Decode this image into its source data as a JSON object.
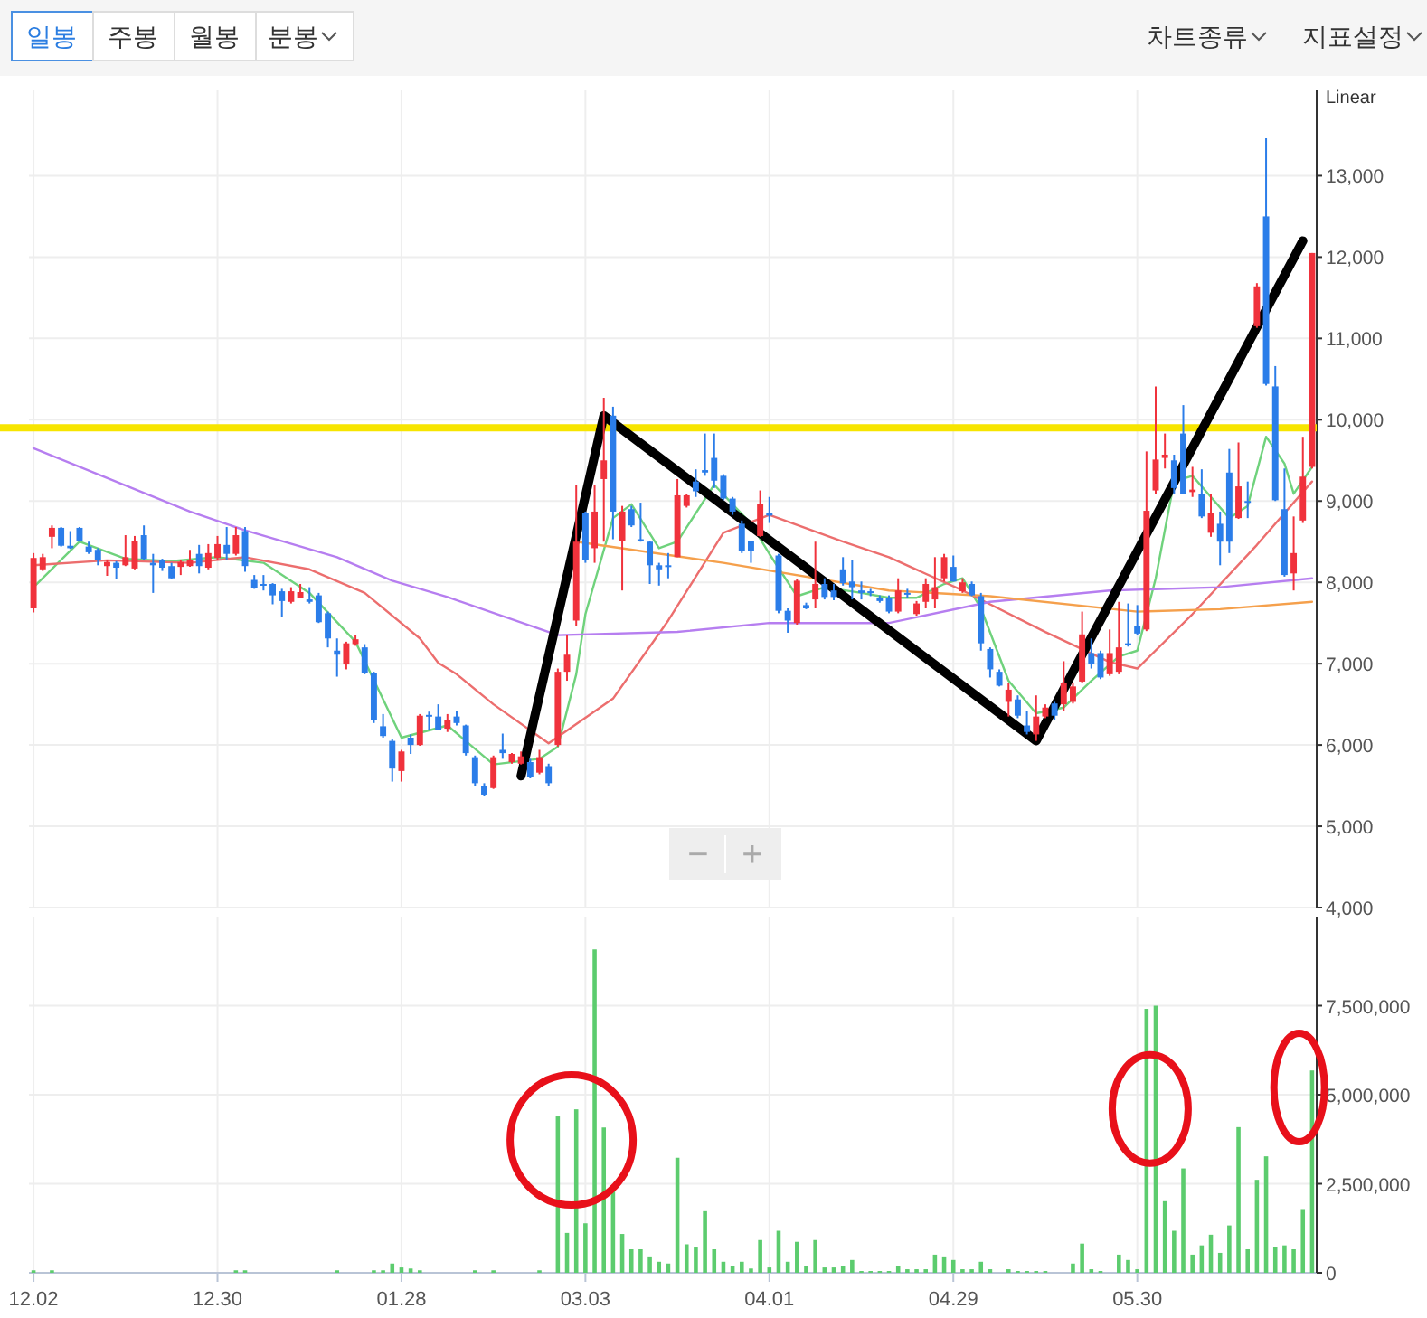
{
  "chart_data": [
    {
      "type": "candlestick",
      "categories": [
        "12.02",
        null,
        null,
        null,
        null,
        null,
        null,
        null,
        null,
        null,
        null,
        null,
        null,
        null,
        null,
        null,
        null,
        null,
        null,
        null,
        "12.30",
        null,
        null,
        null,
        null,
        null,
        null,
        null,
        null,
        null,
        null,
        null,
        null,
        null,
        null,
        null,
        null,
        null,
        null,
        null,
        "01.28",
        null,
        null,
        null,
        null,
        null,
        null,
        null,
        null,
        null,
        null,
        null,
        null,
        null,
        null,
        null,
        null,
        null,
        null,
        null,
        "03.03",
        null,
        null,
        null,
        null,
        null,
        null,
        null,
        null,
        null,
        null,
        null,
        null,
        null,
        null,
        null,
        null,
        null,
        null,
        null,
        "04.01",
        null,
        null,
        null,
        null,
        null,
        null,
        null,
        null,
        null,
        null,
        null,
        null,
        null,
        null,
        null,
        null,
        null,
        null,
        null,
        "04.29",
        null,
        null,
        null,
        null,
        null,
        null,
        null,
        null,
        null,
        null,
        null,
        null,
        null,
        null,
        null,
        null,
        null,
        null,
        null,
        "05.30",
        null,
        null,
        null,
        null,
        null,
        null,
        null,
        null,
        null,
        null,
        null,
        null,
        null,
        null,
        null,
        null,
        null,
        null,
        null
      ],
      "ohlc": [
        [
          7680,
          8360,
          7630,
          8300
        ],
        [
          8160,
          8350,
          8140,
          8310
        ],
        [
          8560,
          8700,
          8420,
          8670
        ],
        [
          8670,
          8680,
          8440,
          8450
        ],
        [
          8450,
          8630,
          8410,
          8420
        ],
        [
          8670,
          8680,
          8500,
          8510
        ],
        [
          8440,
          8500,
          8350,
          8370
        ],
        [
          8400,
          8420,
          8210,
          8270
        ],
        [
          8200,
          8270,
          8080,
          8250
        ],
        [
          8240,
          8260,
          8040,
          8180
        ],
        [
          8210,
          8580,
          8200,
          8310
        ],
        [
          8170,
          8570,
          8160,
          8510
        ],
        [
          8580,
          8700,
          8270,
          8290
        ],
        [
          8240,
          8350,
          7870,
          8210
        ],
        [
          8270,
          8290,
          8140,
          8180
        ],
        [
          8200,
          8240,
          8040,
          8050
        ],
        [
          8190,
          8270,
          8090,
          8250
        ],
        [
          8200,
          8400,
          8190,
          8270
        ],
        [
          8350,
          8460,
          8110,
          8200
        ],
        [
          8180,
          8470,
          8160,
          8360
        ],
        [
          8300,
          8570,
          8270,
          8470
        ],
        [
          8460,
          8680,
          8270,
          8350
        ],
        [
          8350,
          8680,
          8330,
          8580
        ],
        [
          8630,
          8680,
          8130,
          8200
        ],
        [
          8030,
          8090,
          7920,
          7930
        ],
        [
          7980,
          8090,
          7900,
          7960
        ],
        [
          7980,
          7990,
          7730,
          7840
        ],
        [
          7890,
          7920,
          7570,
          7770
        ],
        [
          7760,
          7940,
          7740,
          7890
        ],
        [
          7810,
          7980,
          7810,
          7880
        ],
        [
          7790,
          7940,
          7740,
          7760
        ],
        [
          7840,
          7870,
          7500,
          7510
        ],
        [
          7620,
          7640,
          7200,
          7310
        ],
        [
          7160,
          7310,
          6840,
          7110
        ],
        [
          6990,
          7270,
          6930,
          7250
        ],
        [
          7240,
          7350,
          7220,
          7300
        ],
        [
          7200,
          7240,
          6870,
          6890
        ],
        [
          6890,
          6900,
          6270,
          6310
        ],
        [
          6230,
          6380,
          6090,
          6110
        ],
        [
          6050,
          6070,
          5550,
          5710
        ],
        [
          5680,
          5940,
          5550,
          5920
        ],
        [
          6090,
          6130,
          5890,
          6000
        ],
        [
          6000,
          6380,
          5990,
          6360
        ],
        [
          6370,
          6410,
          6190,
          6360
        ],
        [
          6350,
          6500,
          6180,
          6180
        ],
        [
          6200,
          6380,
          6160,
          6310
        ],
        [
          6350,
          6420,
          6240,
          6270
        ],
        [
          6240,
          6250,
          5870,
          5900
        ],
        [
          5850,
          5870,
          5500,
          5530
        ],
        [
          5500,
          5530,
          5370,
          5390
        ],
        [
          5470,
          5870,
          5460,
          5850
        ],
        [
          5940,
          6140,
          5830,
          5900
        ],
        [
          5790,
          5900,
          5770,
          5890
        ],
        [
          5770,
          5920,
          5760,
          5860
        ],
        [
          5790,
          5830,
          5590,
          5610
        ],
        [
          5660,
          5940,
          5640,
          5850
        ],
        [
          5740,
          5770,
          5500,
          5530
        ],
        [
          6000,
          6940,
          5980,
          6900
        ],
        [
          6900,
          7350,
          6790,
          7110
        ],
        [
          7530,
          9200,
          7460,
          8500
        ],
        [
          8850,
          8870,
          8240,
          8280
        ],
        [
          8420,
          9200,
          8240,
          8870
        ],
        [
          9270,
          10270,
          8500,
          9500
        ],
        [
          10050,
          10160,
          8530,
          8870
        ],
        [
          8510,
          8940,
          7900,
          8870
        ],
        [
          8900,
          8940,
          8680,
          8700
        ],
        [
          8530,
          8980,
          8500,
          8510
        ],
        [
          8500,
          8510,
          7980,
          8210
        ],
        [
          8210,
          8240,
          7960,
          8160
        ],
        [
          8210,
          8360,
          8050,
          8190
        ],
        [
          8310,
          9270,
          8310,
          9070
        ],
        [
          8940,
          9090,
          8920,
          9070
        ],
        [
          9240,
          9390,
          9050,
          9120
        ],
        [
          9380,
          9830,
          9310,
          9350
        ],
        [
          9530,
          9830,
          9160,
          9250
        ],
        [
          9310,
          9330,
          9010,
          9030
        ],
        [
          9030,
          9050,
          8830,
          8870
        ],
        [
          8720,
          8760,
          8360,
          8390
        ],
        [
          8510,
          8510,
          8240,
          8390
        ],
        [
          8570,
          9130,
          8560,
          8960
        ],
        [
          8850,
          9050,
          8730,
          8820
        ],
        [
          8330,
          8350,
          7620,
          7650
        ],
        [
          7650,
          7680,
          7380,
          7530
        ],
        [
          7500,
          8040,
          7480,
          8020
        ],
        [
          7720,
          7750,
          7670,
          7680
        ],
        [
          7790,
          8500,
          7680,
          7980
        ],
        [
          7980,
          8050,
          7790,
          7820
        ],
        [
          7900,
          7980,
          7780,
          7820
        ],
        [
          8160,
          8310,
          7960,
          7990
        ],
        [
          8010,
          8270,
          7790,
          7940
        ],
        [
          7900,
          8010,
          7790,
          7870
        ],
        [
          7890,
          7920,
          7830,
          7870
        ],
        [
          7810,
          7840,
          7750,
          7770
        ],
        [
          7810,
          7840,
          7620,
          7640
        ],
        [
          7640,
          8050,
          7620,
          7900
        ],
        [
          7870,
          7920,
          7810,
          7860
        ],
        [
          7610,
          7770,
          7590,
          7740
        ],
        [
          7760,
          8050,
          7680,
          7980
        ],
        [
          7790,
          8310,
          7680,
          7940
        ],
        [
          8050,
          8350,
          8010,
          8310
        ],
        [
          8190,
          8330,
          8010,
          8010
        ],
        [
          7890,
          8050,
          7870,
          8000
        ],
        [
          7980,
          8010,
          7830,
          7840
        ],
        [
          7830,
          7870,
          7160,
          7250
        ],
        [
          7180,
          7200,
          6830,
          6930
        ],
        [
          6900,
          6930,
          6720,
          6730
        ],
        [
          6530,
          6760,
          6350,
          6680
        ],
        [
          6560,
          6610,
          6330,
          6360
        ],
        [
          6240,
          6420,
          6130,
          6160
        ],
        [
          6130,
          6610,
          6050,
          6350
        ],
        [
          6350,
          6500,
          6330,
          6460
        ],
        [
          6510,
          6530,
          6310,
          6360
        ],
        [
          6500,
          7030,
          6420,
          6760
        ],
        [
          6530,
          6760,
          6510,
          6720
        ],
        [
          6780,
          7640,
          6760,
          7360
        ],
        [
          7130,
          7310,
          6940,
          7000
        ],
        [
          7130,
          7160,
          6810,
          6830
        ],
        [
          6870,
          7420,
          6850,
          7130
        ],
        [
          6900,
          7760,
          6870,
          7200
        ],
        [
          7250,
          7740,
          7210,
          7240
        ],
        [
          7460,
          7720,
          7350,
          7370
        ],
        [
          7420,
          9610,
          7400,
          8880
        ],
        [
          9130,
          10410,
          9090,
          9510
        ],
        [
          9530,
          9830,
          9400,
          9570
        ],
        [
          9500,
          9570,
          9090,
          9160
        ],
        [
          9830,
          10180,
          9090,
          9090
        ],
        [
          9110,
          9420,
          9050,
          9140
        ],
        [
          9090,
          9390,
          8790,
          8810
        ],
        [
          8610,
          9090,
          8560,
          8850
        ],
        [
          8720,
          8870,
          8210,
          8500
        ],
        [
          9350,
          9640,
          8360,
          8500
        ],
        [
          8790,
          9720,
          8780,
          9180
        ],
        [
          9000,
          9240,
          8790,
          8980
        ],
        [
          11150,
          11680,
          11130,
          11640
        ],
        [
          12500,
          13460,
          10420,
          10440
        ],
        [
          10410,
          10660,
          9000,
          9010
        ],
        [
          8900,
          9400,
          8070,
          8090
        ],
        [
          8110,
          8810,
          7900,
          8360
        ],
        [
          8760,
          9790,
          8730,
          9300
        ],
        [
          9420,
          12050,
          9400,
          12050
        ]
      ],
      "series": [
        {
          "type": "line",
          "color": "#6fd27c",
          "values": [
            7940,
            null,
            null,
            null,
            null,
            8500,
            null,
            null,
            null,
            null,
            8290,
            null,
            null,
            null,
            null,
            8260,
            null,
            null,
            null,
            null,
            8310,
            null,
            null,
            null,
            null,
            8240,
            null,
            null,
            null,
            null,
            7870,
            null,
            null,
            null,
            null,
            7270,
            null,
            null,
            null,
            null,
            6090,
            null,
            null,
            null,
            null,
            6240,
            null,
            null,
            null,
            null,
            5760,
            null,
            null,
            null,
            null,
            5830,
            null,
            5980,
            null,
            6870,
            7610,
            null,
            null,
            8790,
            null,
            8960,
            null,
            null,
            8420,
            null,
            8500,
            null,
            null,
            null,
            9200,
            null,
            null,
            null,
            8720,
            null,
            8350,
            null,
            null,
            7830,
            null,
            null,
            7940,
            null,
            null,
            null,
            7870,
            null,
            null,
            7810,
            null,
            null,
            7810,
            null,
            null,
            7980,
            null,
            8050,
            null,
            7680,
            null,
            null,
            6790,
            null,
            null,
            6390,
            null,
            null,
            6460,
            null,
            null,
            6790,
            null,
            null,
            7090,
            null,
            7160,
            null,
            8050,
            null,
            9240,
            null,
            9310,
            null,
            9050,
            null,
            8790,
            null,
            8940,
            null,
            9790,
            null,
            9460,
            9090,
            null,
            9420
          ]
        },
        {
          "type": "line",
          "color": "#ec6e6e",
          "values": [
            8210,
            null,
            null,
            null,
            null,
            null,
            null,
            null,
            8270,
            null,
            null,
            null,
            null,
            null,
            null,
            null,
            null,
            8240,
            null,
            null,
            null,
            null,
            null,
            8310,
            null,
            null,
            null,
            null,
            null,
            null,
            8160,
            null,
            null,
            null,
            null,
            null,
            7870,
            null,
            null,
            null,
            null,
            null,
            7310,
            null,
            7010,
            null,
            6870,
            null,
            null,
            null,
            6500,
            null,
            null,
            null,
            null,
            null,
            6020,
            null,
            null,
            null,
            null,
            null,
            null,
            6570,
            null,
            null,
            null,
            null,
            null,
            7530,
            null,
            null,
            null,
            null,
            null,
            8610,
            null,
            null,
            null,
            null,
            8830,
            null,
            null,
            null,
            null,
            null,
            null,
            null,
            8500,
            null,
            null,
            null,
            null,
            8310,
            null,
            null,
            null,
            null,
            null,
            null,
            null,
            7900,
            null,
            null,
            null,
            null,
            null,
            null,
            null,
            null,
            7390,
            null,
            null,
            null,
            null,
            null,
            null,
            7020,
            null,
            null,
            6940,
            null,
            null,
            null,
            null,
            null,
            7610,
            null,
            null,
            null,
            null,
            null,
            null,
            8460,
            null,
            null,
            null,
            null,
            null,
            9240
          ]
        },
        {
          "type": "line",
          "color": "#b67ef0",
          "values": [
            9650,
            null,
            null,
            null,
            null,
            null,
            null,
            null,
            null,
            null,
            null,
            null,
            null,
            null,
            null,
            null,
            null,
            8870,
            null,
            null,
            null,
            null,
            null,
            8640,
            null,
            null,
            null,
            null,
            null,
            null,
            null,
            null,
            null,
            8310,
            null,
            null,
            null,
            null,
            null,
            8020,
            null,
            null,
            null,
            null,
            null,
            7820,
            null,
            null,
            null,
            null,
            null,
            null,
            null,
            null,
            null,
            null,
            null,
            7350,
            null,
            null,
            null,
            null,
            null,
            null,
            null,
            null,
            null,
            null,
            null,
            null,
            7390,
            null,
            null,
            null,
            null,
            null,
            null,
            null,
            null,
            null,
            7500,
            null,
            null,
            null,
            null,
            null,
            null,
            null,
            null,
            null,
            null,
            null,
            null,
            7500,
            null,
            null,
            null,
            null,
            null,
            null,
            null,
            null,
            null,
            null,
            7760,
            null,
            null,
            null,
            null,
            null,
            null,
            null,
            null,
            null,
            null,
            null,
            null,
            7900,
            null,
            null,
            null,
            null,
            null,
            null,
            null,
            null,
            null,
            null,
            null,
            7940,
            null,
            null,
            null,
            null,
            null,
            null,
            null,
            null,
            null,
            8050
          ]
        },
        {
          "type": "line",
          "color": "#f5a04c",
          "values": [
            null,
            null,
            null,
            null,
            null,
            null,
            null,
            null,
            null,
            null,
            null,
            null,
            null,
            null,
            null,
            null,
            null,
            null,
            null,
            null,
            null,
            null,
            null,
            null,
            null,
            null,
            null,
            null,
            null,
            null,
            null,
            null,
            null,
            null,
            null,
            null,
            null,
            null,
            null,
            null,
            null,
            null,
            null,
            null,
            null,
            null,
            null,
            null,
            null,
            null,
            null,
            null,
            null,
            null,
            null,
            null,
            null,
            null,
            null,
            8500,
            null,
            null,
            null,
            null,
            null,
            null,
            null,
            null,
            null,
            null,
            null,
            null,
            null,
            null,
            null,
            8240,
            null,
            null,
            null,
            null,
            null,
            null,
            null,
            null,
            null,
            null,
            null,
            null,
            null,
            null,
            null,
            null,
            null,
            7900,
            null,
            null,
            null,
            null,
            null,
            null,
            null,
            null,
            null,
            null,
            7830,
            null,
            null,
            null,
            null,
            null,
            null,
            null,
            null,
            null,
            null,
            null,
            null,
            null,
            null,
            null,
            7640,
            null,
            null,
            null,
            null,
            null,
            null,
            null,
            null,
            7670,
            null,
            null,
            null,
            null,
            null,
            null,
            null,
            null,
            null,
            7760
          ]
        },
        {
          "type": "line",
          "color": "#000000",
          "values": [
            null,
            null,
            null,
            null,
            null,
            null,
            null,
            null,
            null,
            null,
            null,
            null,
            null,
            null,
            null,
            null,
            null,
            null,
            null,
            null,
            null,
            null,
            null,
            null,
            null,
            null,
            null,
            null,
            null,
            null,
            null,
            null,
            null,
            null,
            null,
            null,
            null,
            null,
            null,
            null,
            null,
            null,
            null,
            null,
            null,
            null,
            null,
            null,
            null,
            null,
            null,
            null,
            null,
            5620,
            null,
            null,
            null,
            null,
            null,
            null,
            null,
            null,
            10050,
            null,
            null,
            null,
            null,
            null,
            null,
            null,
            null,
            null,
            null,
            null,
            null,
            null,
            null,
            null,
            null,
            null,
            null,
            null,
            null,
            null,
            null,
            null,
            null,
            null,
            null,
            null,
            null,
            null,
            null,
            null,
            null,
            null,
            null,
            null,
            null,
            null,
            null,
            null,
            null,
            null,
            null,
            null,
            null,
            null,
            null,
            6050,
            null,
            null,
            null,
            null,
            null,
            null,
            null,
            null,
            null,
            null,
            null,
            null,
            null,
            null,
            null,
            null,
            null,
            null,
            null,
            null,
            null,
            null,
            null,
            null,
            null,
            null,
            null,
            null,
            12200,
            null
          ]
        }
      ],
      "ylim": [
        4000,
        14050
      ],
      "yticks": [
        {
          "value": 4000,
          "label": "4,000"
        },
        {
          "value": 5000,
          "label": "5,000"
        },
        {
          "value": 6000,
          "label": "6,000"
        },
        {
          "value": 7000,
          "label": "7,000"
        },
        {
          "value": 8000,
          "label": "8,000"
        },
        {
          "value": 9000,
          "label": "9,000"
        },
        {
          "value": 10000,
          "label": "10,000"
        },
        {
          "value": 11000,
          "label": "11,000"
        },
        {
          "value": 12000,
          "label": "12,000"
        },
        {
          "value": 13000,
          "label": "13,000"
        }
      ],
      "grid": true,
      "tick_labels": "y",
      "ref_lines": [
        {
          "axis": "y",
          "value": 9900,
          "color": "#f7e500"
        }
      ],
      "annotations": [
        "일봉",
        "주봉",
        "월봉",
        "분봉",
        "차트종류",
        "지표설정",
        "Linear",
        "−",
        "+"
      ]
    },
    {
      "type": "bar",
      "categories": [
        "12.02",
        null,
        null,
        null,
        null,
        null,
        null,
        null,
        null,
        null,
        null,
        null,
        null,
        null,
        null,
        null,
        null,
        null,
        null,
        null,
        "12.30",
        null,
        null,
        null,
        null,
        null,
        null,
        null,
        null,
        null,
        null,
        null,
        null,
        null,
        null,
        null,
        null,
        null,
        null,
        null,
        "01.28",
        null,
        null,
        null,
        null,
        null,
        null,
        null,
        null,
        null,
        null,
        null,
        null,
        null,
        null,
        null,
        null,
        null,
        null,
        null,
        "03.03",
        null,
        null,
        null,
        null,
        null,
        null,
        null,
        null,
        null,
        null,
        null,
        null,
        null,
        null,
        null,
        null,
        null,
        null,
        null,
        "04.01",
        null,
        null,
        null,
        null,
        null,
        null,
        null,
        null,
        null,
        null,
        null,
        null,
        null,
        null,
        null,
        null,
        null,
        null,
        null,
        "04.29",
        null,
        null,
        null,
        null,
        null,
        null,
        null,
        null,
        null,
        null,
        null,
        null,
        null,
        null,
        null,
        null,
        null,
        null,
        null,
        "05.30",
        null,
        null,
        null,
        null,
        null,
        null,
        null,
        null,
        null,
        null,
        null,
        null,
        null,
        null,
        null,
        null,
        null,
        null,
        null
      ],
      "values": [
        70000,
        0,
        70000,
        0,
        0,
        0,
        0,
        0,
        0,
        0,
        0,
        0,
        0,
        0,
        0,
        0,
        0,
        0,
        0,
        0,
        0,
        0,
        70000,
        70000,
        0,
        0,
        0,
        0,
        0,
        0,
        0,
        0,
        0,
        70000,
        0,
        0,
        0,
        70000,
        70000,
        260000,
        150000,
        120000,
        70000,
        0,
        0,
        0,
        0,
        0,
        70000,
        0,
        70000,
        0,
        0,
        0,
        0,
        70000,
        0,
        4390000,
        1120000,
        4590000,
        1390000,
        9080000,
        4080000,
        2330000,
        1090000,
        660000,
        660000,
        460000,
        310000,
        260000,
        3230000,
        800000,
        710000,
        1730000,
        660000,
        310000,
        200000,
        310000,
        120000,
        920000,
        150000,
        1180000,
        310000,
        870000,
        200000,
        920000,
        150000,
        150000,
        200000,
        360000,
        50000,
        50000,
        50000,
        50000,
        200000,
        100000,
        100000,
        100000,
        510000,
        460000,
        360000,
        100000,
        100000,
        310000,
        100000,
        0,
        100000,
        50000,
        50000,
        50000,
        50000,
        0,
        0,
        260000,
        820000,
        100000,
        50000,
        0,
        510000,
        360000,
        100000,
        7410000,
        7500000,
        2010000,
        1180000,
        2930000,
        510000,
        770000,
        1070000,
        560000,
        1330000,
        4090000,
        660000,
        2610000,
        3270000,
        720000,
        770000,
        660000,
        1790000,
        5680000
      ],
      "color": "#5ccc6e",
      "ylim": [
        0,
        10000000
      ],
      "yticks": [
        0,
        {
          "value": 2500000,
          "label": "2,500,000"
        },
        {
          "value": 5000000,
          "label": "5,000,000"
        },
        {
          "value": 7500000,
          "label": "7,500,000"
        }
      ],
      "grid": true
    }
  ]
}
